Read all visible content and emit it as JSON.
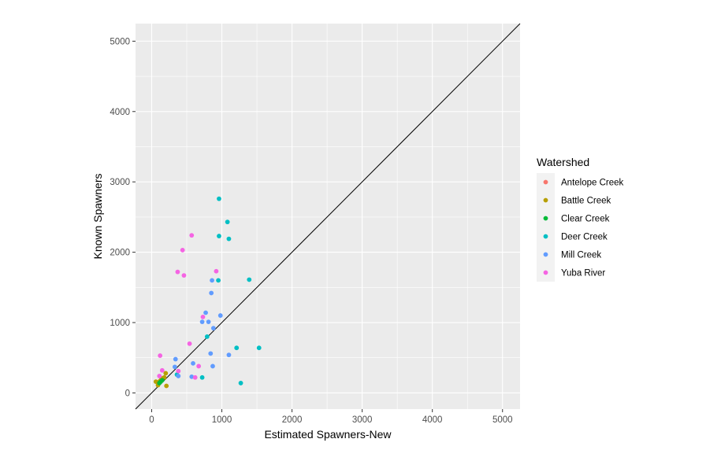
{
  "chart_data": {
    "type": "scatter",
    "title": "",
    "xlabel": "Estimated Spawners-New",
    "ylabel": "Known Spawners",
    "xlim": [
      -230,
      5250
    ],
    "ylim": [
      -230,
      5250
    ],
    "x_ticks": [
      0,
      1000,
      2000,
      3000,
      4000,
      5000
    ],
    "y_ticks": [
      0,
      1000,
      2000,
      3000,
      4000,
      5000
    ],
    "x_tick_labels": [
      "0",
      "1000",
      "2000",
      "3000",
      "4000",
      "5000"
    ],
    "y_tick_labels": [
      "0",
      "1000",
      "2000",
      "3000",
      "4000",
      "5000"
    ],
    "grid": true,
    "panel_background": "#EBEBEB",
    "reference_line": {
      "type": "identity",
      "slope": 1,
      "intercept": 0,
      "color": "#000000"
    },
    "legend": {
      "title": "Watershed",
      "placement": "right",
      "entries": [
        "Antelope Creek",
        "Battle Creek",
        "Clear Creek",
        "Deer Creek",
        "Mill Creek",
        "Yuba River"
      ]
    },
    "series": [
      {
        "name": "Antelope Creek",
        "color": "#F8766D",
        "points": []
      },
      {
        "name": "Battle Creek",
        "color": "#B79F00",
        "points": [
          [
            60,
            160
          ],
          [
            100,
            150
          ],
          [
            120,
            170
          ],
          [
            140,
            200
          ],
          [
            160,
            210
          ],
          [
            180,
            220
          ],
          [
            200,
            280
          ],
          [
            210,
            100
          ],
          [
            90,
            110
          ]
        ]
      },
      {
        "name": "Clear Creek",
        "color": "#00BA38",
        "points": [
          [
            110,
            140
          ],
          [
            130,
            160
          ],
          [
            150,
            180
          ]
        ]
      },
      {
        "name": "Deer Creek",
        "color": "#00BFC4",
        "points": [
          [
            960,
            2760
          ],
          [
            1080,
            2430
          ],
          [
            960,
            2230
          ],
          [
            1100,
            2190
          ],
          [
            1390,
            1610
          ],
          [
            950,
            1600
          ],
          [
            790,
            800
          ],
          [
            1210,
            640
          ],
          [
            1530,
            640
          ],
          [
            720,
            220
          ],
          [
            1270,
            140
          ],
          [
            360,
            260
          ]
        ]
      },
      {
        "name": "Mill Creek",
        "color": "#619CFF",
        "points": [
          [
            860,
            1600
          ],
          [
            850,
            1420
          ],
          [
            770,
            1140
          ],
          [
            720,
            1010
          ],
          [
            810,
            1010
          ],
          [
            980,
            1100
          ],
          [
            880,
            920
          ],
          [
            340,
            480
          ],
          [
            330,
            370
          ],
          [
            590,
            420
          ],
          [
            840,
            560
          ],
          [
            870,
            380
          ],
          [
            1100,
            540
          ],
          [
            570,
            230
          ],
          [
            380,
            240
          ]
        ]
      },
      {
        "name": "Yuba River",
        "color": "#F564E3",
        "points": [
          [
            570,
            2240
          ],
          [
            440,
            2030
          ],
          [
            370,
            1720
          ],
          [
            460,
            1670
          ],
          [
            920,
            1730
          ],
          [
            730,
            1080
          ],
          [
            540,
            700
          ],
          [
            120,
            530
          ],
          [
            670,
            380
          ],
          [
            380,
            310
          ],
          [
            150,
            320
          ],
          [
            620,
            220
          ],
          [
            110,
            240
          ]
        ]
      }
    ]
  }
}
